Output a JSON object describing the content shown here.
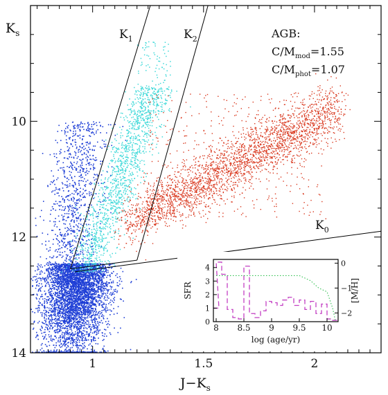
{
  "chart_data": [
    {
      "type": "scatter",
      "title": "",
      "xlabel": "J−K",
      "xlabel_sub": "s",
      "ylabel": "K",
      "ylabel_sub": "s",
      "xlim": [
        0.72,
        2.3
      ],
      "ylim": [
        14,
        8
      ],
      "y_inverted": true,
      "x_ticks": [
        1,
        1.5,
        2
      ],
      "x_tick_labels": [
        "1",
        "1.5",
        "2"
      ],
      "y_ticks": [
        10,
        12,
        14
      ],
      "y_tick_labels": [
        "10",
        "12",
        "14"
      ],
      "grid": false,
      "annotations": {
        "agb_title": "AGB:",
        "cm_mod_prefix": "C/M",
        "cm_mod_sub": "mod",
        "cm_mod_value": "=1.55",
        "cm_phot_prefix": "C/M",
        "cm_phot_sub": "phot",
        "cm_phot_value": "=1.07",
        "k1_main": "K",
        "k1_sub": "1",
        "k2_main": "K",
        "k2_sub": "2",
        "k0_main": "K",
        "k0_sub": "0"
      },
      "selection_lines": [
        {
          "name": "K1",
          "x": [
            0.9,
            1.26
          ],
          "y": [
            12.55,
            8.0
          ]
        },
        {
          "name": "K2",
          "x": [
            1.2,
            1.52
          ],
          "y": [
            12.4,
            8.0
          ]
        },
        {
          "name": "K0",
          "x": [
            0.92,
            2.3
          ],
          "y": [
            12.6,
            11.9
          ]
        },
        {
          "name": "K1-K2 bottom",
          "x": [
            0.9,
            1.2
          ],
          "y": [
            12.55,
            12.4
          ]
        }
      ],
      "series": [
        {
          "color": "#1f3fd6",
          "population": "RGB / oxygen-rich (blue)",
          "density_model": "dense RGB plume, K 12.4–14, J−K 0.75–1.15, upward extension to K≈9.8 along J−K≈0.9–1.05",
          "points": []
        },
        {
          "color": "#3fd9d9",
          "population": "AGB M-stars (cyan)",
          "density_model": "diagonal band from (0.95,12.6) to (1.3,9.5), plus sparse tail to K≈8.5",
          "points": []
        },
        {
          "color": "#d9381e",
          "population": "AGB C-stars (red)",
          "density_model": "broad band from (1.15,11.8) to (2.1,9.8)",
          "points": []
        }
      ]
    },
    {
      "type": "line",
      "inset": true,
      "xlabel": "log (age/yr)",
      "ylabel_left": "SFR",
      "ylabel_right": "[M/H]",
      "xlim": [
        7.95,
        10.2
      ],
      "ylim_left": [
        0,
        4.6
      ],
      "ylim_right": [
        -2.35,
        0.15
      ],
      "x_ticks": [
        8,
        8.5,
        9,
        9.5,
        10
      ],
      "x_tick_labels": [
        "8",
        "8.5",
        "9",
        "9.5",
        "10"
      ],
      "y_left_ticks": [
        0,
        1,
        2,
        3,
        4
      ],
      "y_left_tick_labels": [
        "0",
        "1",
        "2",
        "3",
        "4"
      ],
      "y_right_ticks": [
        0,
        -1,
        -2
      ],
      "y_right_tick_labels": [
        "0",
        "−1",
        "−2"
      ],
      "colors": {
        "sfr": "#c23fc2",
        "mh": "#2fbf4f"
      },
      "series": [
        {
          "name": "SFR",
          "style": "dashed-step",
          "x": [
            8.0,
            8.05,
            8.15,
            8.25,
            8.35,
            8.45,
            8.55,
            8.65,
            8.75,
            8.85,
            8.95,
            9.05,
            9.15,
            9.25,
            9.35,
            9.45,
            9.55,
            9.65,
            9.75,
            9.85,
            9.95,
            10.05,
            10.15
          ],
          "values": [
            1.0,
            4.4,
            3.5,
            0.9,
            0.3,
            0.2,
            4.1,
            0.6,
            0.3,
            0.8,
            1.5,
            1.4,
            1.2,
            1.6,
            1.8,
            1.2,
            1.6,
            0.9,
            1.5,
            0.6,
            1.3,
            0.2,
            0.1
          ]
        },
        {
          "name": "[M/H]",
          "style": "dotted",
          "x": [
            8.0,
            8.5,
            9.0,
            9.3,
            9.5,
            9.7,
            9.85,
            10.0,
            10.1,
            10.15
          ],
          "values": [
            -0.5,
            -0.5,
            -0.5,
            -0.5,
            -0.5,
            -0.7,
            -1.0,
            -1.15,
            -1.8,
            -2.3
          ]
        }
      ]
    }
  ]
}
